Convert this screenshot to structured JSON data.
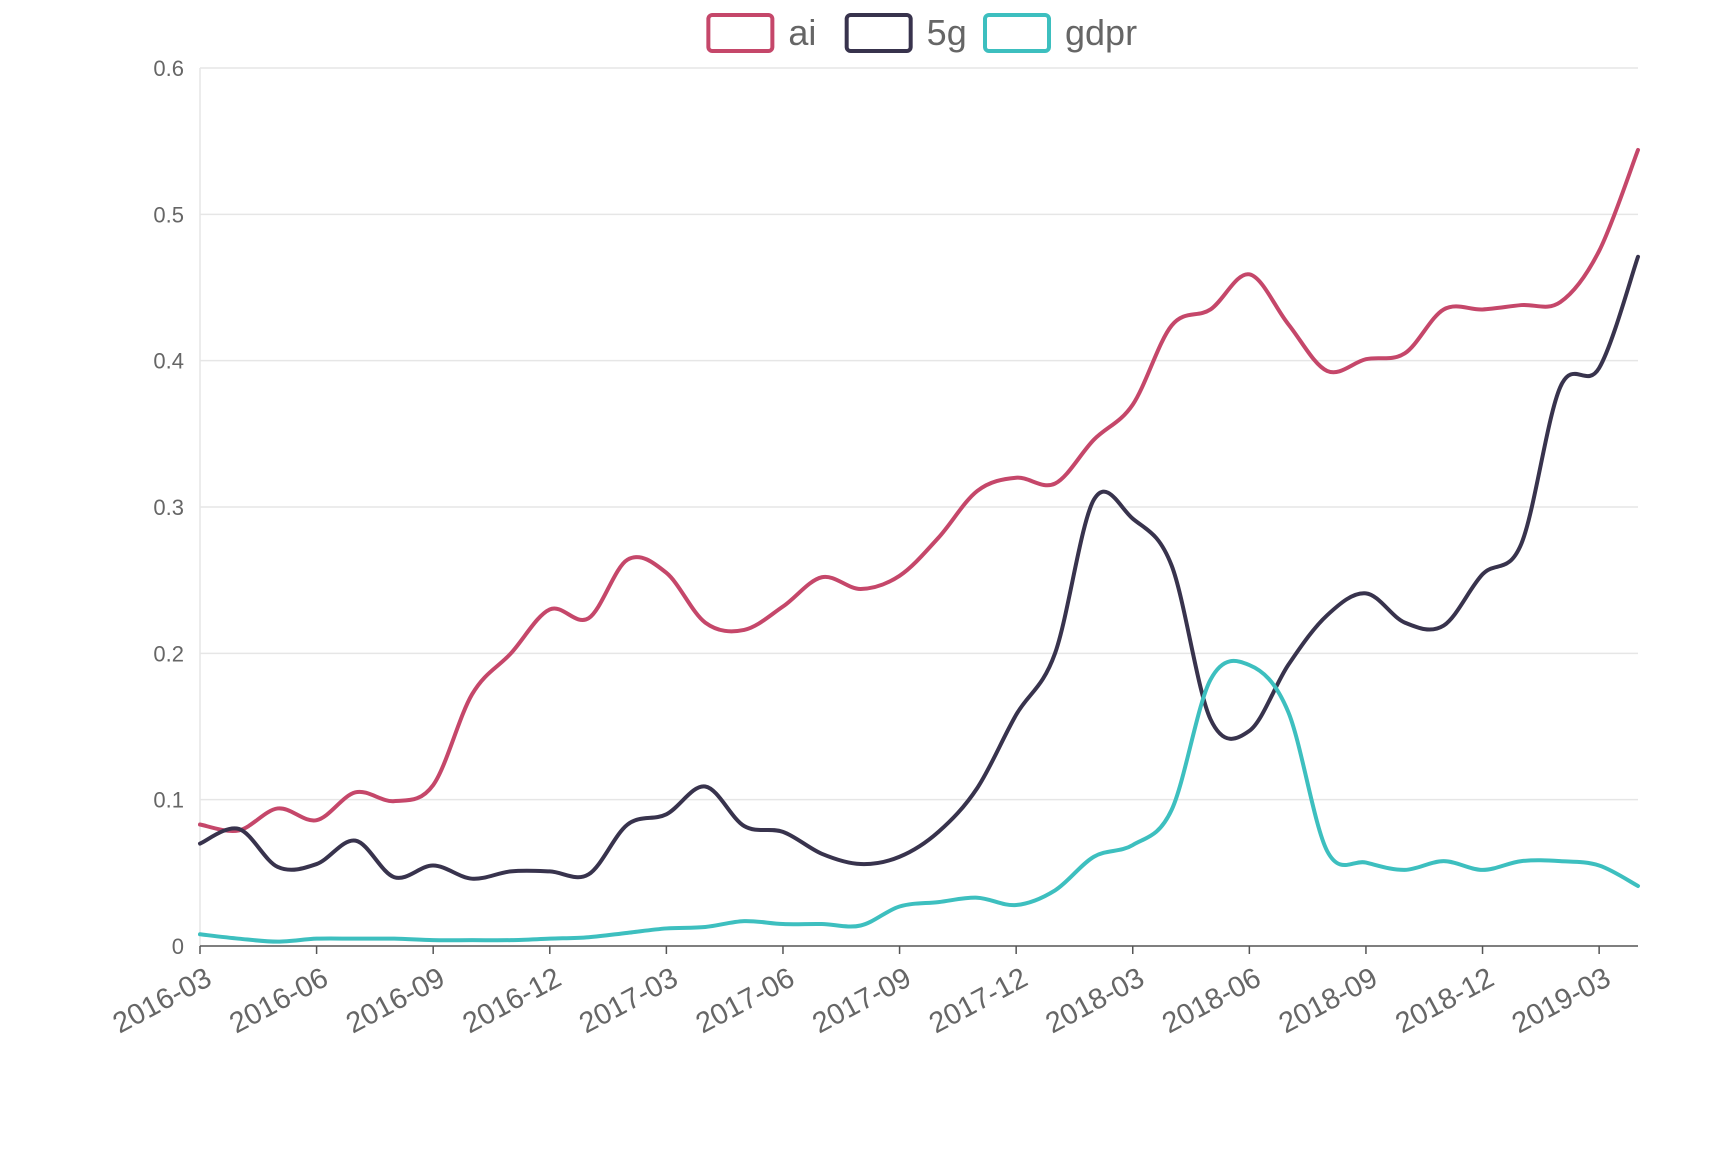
{
  "chart_data": {
    "type": "line",
    "title": "",
    "xlabel": "",
    "ylabel": "",
    "ylim": [
      0,
      0.6
    ],
    "yticks": [
      "0",
      "0.1",
      "0.2",
      "0.3",
      "0.4",
      "0.5",
      "0.6"
    ],
    "xticks": [
      "2016-03",
      "2016-06",
      "2016-09",
      "2016-12",
      "2017-03",
      "2017-06",
      "2017-09",
      "2017-12",
      "2018-03",
      "2018-06",
      "2018-09",
      "2018-12",
      "2019-03"
    ],
    "x_start": "2016-03",
    "x_end": "2019-04",
    "x_step_months": 1,
    "grid": true,
    "legend_position": "top-center",
    "series": [
      {
        "name": "ai",
        "color": "#c5476a",
        "values": [
          0.083,
          0.079,
          0.094,
          0.086,
          0.105,
          0.099,
          0.11,
          0.172,
          0.2,
          0.23,
          0.224,
          0.264,
          0.255,
          0.221,
          0.216,
          0.232,
          0.252,
          0.244,
          0.253,
          0.279,
          0.311,
          0.32,
          0.316,
          0.346,
          0.37,
          0.424,
          0.435,
          0.459,
          0.425,
          0.393,
          0.401,
          0.405,
          0.435,
          0.435,
          0.438,
          0.44,
          0.475,
          0.544
        ]
      },
      {
        "name": "5g",
        "color": "#38334d",
        "values": [
          0.07,
          0.08,
          0.054,
          0.056,
          0.072,
          0.047,
          0.055,
          0.046,
          0.051,
          0.051,
          0.049,
          0.083,
          0.09,
          0.109,
          0.082,
          0.078,
          0.063,
          0.056,
          0.061,
          0.078,
          0.108,
          0.158,
          0.2,
          0.305,
          0.292,
          0.26,
          0.155,
          0.147,
          0.192,
          0.226,
          0.241,
          0.221,
          0.219,
          0.254,
          0.275,
          0.382,
          0.395,
          0.471
        ]
      },
      {
        "name": "gdpr",
        "color": "#3dbfbf",
        "values": [
          0.008,
          0.005,
          0.003,
          0.005,
          0.005,
          0.005,
          0.004,
          0.004,
          0.004,
          0.005,
          0.006,
          0.009,
          0.012,
          0.013,
          0.017,
          0.015,
          0.015,
          0.014,
          0.027,
          0.03,
          0.033,
          0.028,
          0.038,
          0.061,
          0.069,
          0.093,
          0.182,
          0.192,
          0.16,
          0.065,
          0.057,
          0.052,
          0.058,
          0.052,
          0.058,
          0.058,
          0.055,
          0.041
        ]
      }
    ]
  }
}
